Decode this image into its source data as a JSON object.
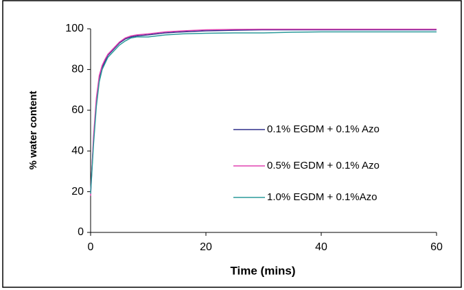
{
  "chart_data": {
    "type": "line",
    "x_label": "Time (mins)",
    "y_label": "% water content",
    "x": [
      0,
      0.5,
      1,
      1.5,
      2,
      2.5,
      3,
      4,
      5,
      6,
      7,
      8,
      10,
      13,
      16,
      20,
      25,
      30,
      35,
      40,
      50,
      60
    ],
    "series": [
      {
        "name": "0.1% EGDM + 0.1% Azo",
        "color": "#2e2e8a",
        "values": [
          20,
          45,
          64,
          75,
          81,
          84,
          87,
          90,
          93,
          95,
          96,
          96.5,
          97,
          98,
          98.5,
          99,
          99.3,
          99.5,
          99.5,
          99.5,
          99.5,
          99.5
        ]
      },
      {
        "name": "0.5% EGDM + 0.1% Azo",
        "color": "#e040b0",
        "values": [
          18,
          47,
          66,
          77,
          82,
          85,
          87.5,
          90.5,
          93.5,
          95.5,
          96.5,
          97,
          97.5,
          98.5,
          99,
          99.5,
          99.7,
          99.8,
          99.8,
          99.8,
          99.8,
          99.8
        ]
      },
      {
        "name": "1.0% EGDM + 0.1%Azo",
        "color": "#2a9a9a",
        "values": [
          19,
          43,
          62,
          74,
          80,
          83,
          86,
          89,
          92,
          94,
          95.5,
          96,
          96,
          97,
          97.5,
          97.8,
          98,
          98,
          98.3,
          98.5,
          98.5,
          98.5
        ]
      }
    ],
    "xlim": [
      0,
      60
    ],
    "xticks": [
      0,
      20,
      40,
      60
    ],
    "ylim": [
      0,
      100
    ],
    "yticks": [
      0,
      20,
      40,
      60,
      80,
      100
    ]
  }
}
